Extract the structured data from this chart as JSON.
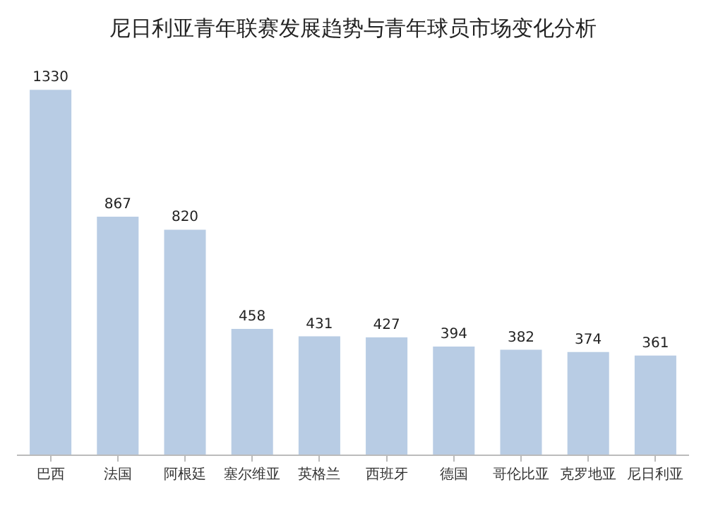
{
  "chart_data": {
    "type": "bar",
    "title": "尼日利亚青年联赛发展趋势与青年球员市场变化分析",
    "categories": [
      "巴西",
      "法国",
      "阿根廷",
      "塞尔维亚",
      "英格兰",
      "西班牙",
      "德国",
      "哥伦比亚",
      "克罗地亚",
      "尼日利亚"
    ],
    "values": [
      1330,
      867,
      820,
      458,
      431,
      427,
      394,
      382,
      374,
      361
    ],
    "color": "#b8cce4",
    "data_labels": true
  }
}
